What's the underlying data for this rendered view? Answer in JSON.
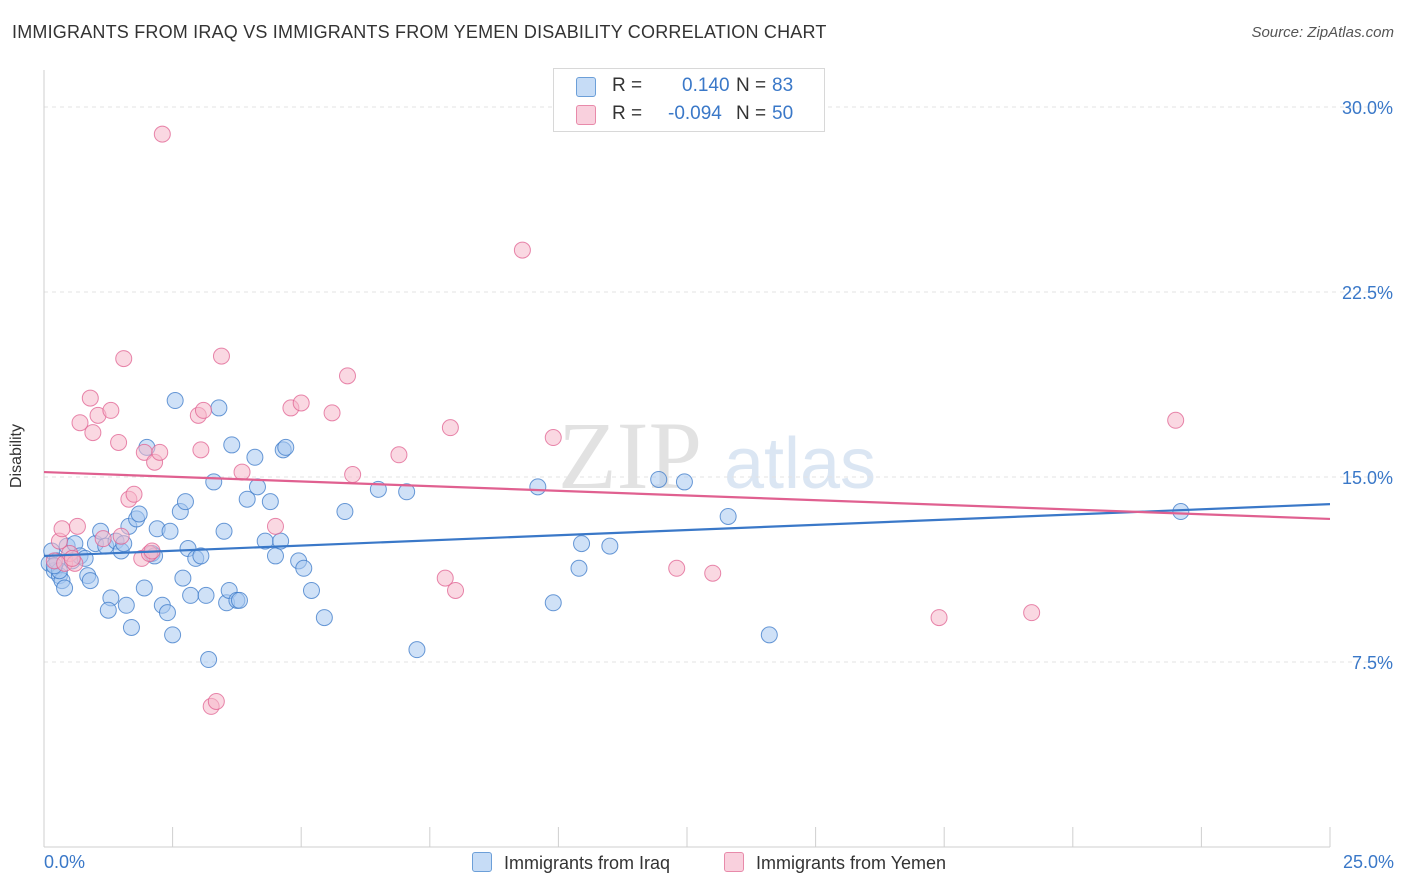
{
  "title": "IMMIGRANTS FROM IRAQ VS IMMIGRANTS FROM YEMEN DISABILITY CORRELATION CHART",
  "source": "Source: ZipAtlas.com",
  "watermark": {
    "zip": "ZIP",
    "atlas": "atlas"
  },
  "legend_top": {
    "rows": [
      {
        "r_label": "R =",
        "r_value": "0.140",
        "n_label": "N =",
        "n_value": "83",
        "color": "#a8c8f0"
      },
      {
        "r_label": "R =",
        "r_value": "-0.094",
        "n_label": "N =",
        "n_value": "50",
        "color": "#f5b8cb"
      }
    ]
  },
  "legend_bottom": [
    {
      "label": "Immigrants from Iraq",
      "color": "#a8c8f0"
    },
    {
      "label": "Immigrants from Yemen",
      "color": "#f5b8cb"
    }
  ],
  "chart_data": {
    "type": "scatter",
    "title": "IMMIGRANTS FROM IRAQ VS IMMIGRANTS FROM YEMEN DISABILITY CORRELATION CHART",
    "xlabel": "",
    "ylabel": "Disability",
    "xlim": [
      0,
      25
    ],
    "ylim": [
      0,
      31.5
    ],
    "x_tick_labels": [
      "0.0%",
      "25.0%"
    ],
    "y_ticks": [
      7.5,
      15.0,
      22.5,
      30.0
    ],
    "y_tick_labels": [
      "7.5%",
      "15.0%",
      "22.5%",
      "30.0%"
    ],
    "grid": true,
    "series": [
      {
        "name": "Immigrants from Iraq",
        "color": "#3a78c8",
        "fill": "#a8c8f0",
        "trend": {
          "x": [
            0,
            25
          ],
          "y": [
            11.8,
            13.9
          ]
        },
        "points": [
          [
            0.1,
            11.5
          ],
          [
            0.15,
            12.0
          ],
          [
            0.2,
            11.2
          ],
          [
            0.25,
            11.6
          ],
          [
            0.3,
            11.0
          ],
          [
            0.35,
            10.8
          ],
          [
            0.4,
            10.5
          ],
          [
            0.45,
            12.2
          ],
          [
            0.55,
            11.6
          ],
          [
            0.6,
            12.3
          ],
          [
            0.7,
            11.8
          ],
          [
            0.8,
            11.7
          ],
          [
            0.85,
            11.0
          ],
          [
            0.9,
            10.8
          ],
          [
            1.0,
            12.3
          ],
          [
            1.1,
            12.8
          ],
          [
            1.2,
            12.2
          ],
          [
            1.3,
            10.1
          ],
          [
            1.25,
            9.6
          ],
          [
            1.4,
            12.4
          ],
          [
            1.5,
            12.0
          ],
          [
            1.55,
            12.3
          ],
          [
            1.6,
            9.8
          ],
          [
            1.65,
            13.0
          ],
          [
            1.7,
            8.9
          ],
          [
            1.8,
            13.3
          ],
          [
            1.85,
            13.5
          ],
          [
            1.95,
            10.5
          ],
          [
            2.0,
            16.2
          ],
          [
            2.1,
            11.9
          ],
          [
            2.15,
            11.8
          ],
          [
            2.2,
            12.9
          ],
          [
            2.3,
            9.8
          ],
          [
            2.4,
            9.5
          ],
          [
            2.45,
            12.8
          ],
          [
            2.5,
            8.6
          ],
          [
            2.55,
            18.1
          ],
          [
            2.65,
            13.6
          ],
          [
            2.7,
            10.9
          ],
          [
            2.75,
            14.0
          ],
          [
            2.8,
            12.1
          ],
          [
            2.85,
            10.2
          ],
          [
            2.95,
            11.7
          ],
          [
            3.05,
            11.8
          ],
          [
            3.15,
            10.2
          ],
          [
            3.2,
            7.6
          ],
          [
            3.3,
            14.8
          ],
          [
            3.4,
            17.8
          ],
          [
            3.5,
            12.8
          ],
          [
            3.55,
            9.9
          ],
          [
            3.6,
            10.4
          ],
          [
            3.65,
            16.3
          ],
          [
            3.75,
            10.0
          ],
          [
            3.8,
            10.0
          ],
          [
            3.95,
            14.1
          ],
          [
            4.1,
            15.8
          ],
          [
            4.15,
            14.6
          ],
          [
            4.3,
            12.4
          ],
          [
            4.4,
            14.0
          ],
          [
            4.5,
            11.8
          ],
          [
            4.6,
            12.4
          ],
          [
            4.65,
            16.1
          ],
          [
            4.7,
            16.2
          ],
          [
            4.95,
            11.6
          ],
          [
            5.05,
            11.3
          ],
          [
            5.2,
            10.4
          ],
          [
            5.45,
            9.3
          ],
          [
            5.85,
            13.6
          ],
          [
            6.5,
            14.5
          ],
          [
            7.05,
            14.4
          ],
          [
            7.25,
            8.0
          ],
          [
            9.6,
            14.6
          ],
          [
            9.9,
            9.9
          ],
          [
            10.4,
            11.3
          ],
          [
            10.45,
            12.3
          ],
          [
            11.0,
            12.2
          ],
          [
            11.95,
            14.9
          ],
          [
            12.45,
            14.8
          ],
          [
            13.3,
            13.4
          ],
          [
            14.1,
            8.6
          ],
          [
            22.1,
            13.6
          ],
          [
            0.3,
            11.2
          ],
          [
            0.2,
            11.4
          ]
        ]
      },
      {
        "name": "Immigrants from Yemen",
        "color": "#e06090",
        "fill": "#f5b8cb",
        "trend": {
          "x": [
            0,
            25
          ],
          "y": [
            15.2,
            13.3
          ]
        },
        "points": [
          [
            0.2,
            11.6
          ],
          [
            0.3,
            12.4
          ],
          [
            0.35,
            12.9
          ],
          [
            0.4,
            11.5
          ],
          [
            0.5,
            11.9
          ],
          [
            0.6,
            11.5
          ],
          [
            0.65,
            13.0
          ],
          [
            0.7,
            17.2
          ],
          [
            0.9,
            18.2
          ],
          [
            0.95,
            16.8
          ],
          [
            1.05,
            17.5
          ],
          [
            1.15,
            12.5
          ],
          [
            1.3,
            17.7
          ],
          [
            1.45,
            16.4
          ],
          [
            1.55,
            19.8
          ],
          [
            1.65,
            14.1
          ],
          [
            1.75,
            14.3
          ],
          [
            1.9,
            11.7
          ],
          [
            1.95,
            16.0
          ],
          [
            2.05,
            11.9
          ],
          [
            2.15,
            15.6
          ],
          [
            2.25,
            16.0
          ],
          [
            2.3,
            28.9
          ],
          [
            3.0,
            17.5
          ],
          [
            3.05,
            16.1
          ],
          [
            3.1,
            17.7
          ],
          [
            3.25,
            5.7
          ],
          [
            3.35,
            5.9
          ],
          [
            3.45,
            19.9
          ],
          [
            3.85,
            15.2
          ],
          [
            4.5,
            13.0
          ],
          [
            4.8,
            17.8
          ],
          [
            5.0,
            18.0
          ],
          [
            5.6,
            17.6
          ],
          [
            5.9,
            19.1
          ],
          [
            6.0,
            15.1
          ],
          [
            6.9,
            15.9
          ],
          [
            7.8,
            10.9
          ],
          [
            7.9,
            17.0
          ],
          [
            8.0,
            10.4
          ],
          [
            9.3,
            24.2
          ],
          [
            9.9,
            16.6
          ],
          [
            12.3,
            11.3
          ],
          [
            13.0,
            11.1
          ],
          [
            17.4,
            9.3
          ],
          [
            19.2,
            9.5
          ],
          [
            22.0,
            17.3
          ],
          [
            1.5,
            12.6
          ],
          [
            2.1,
            12.0
          ],
          [
            0.55,
            11.7
          ]
        ]
      }
    ]
  }
}
